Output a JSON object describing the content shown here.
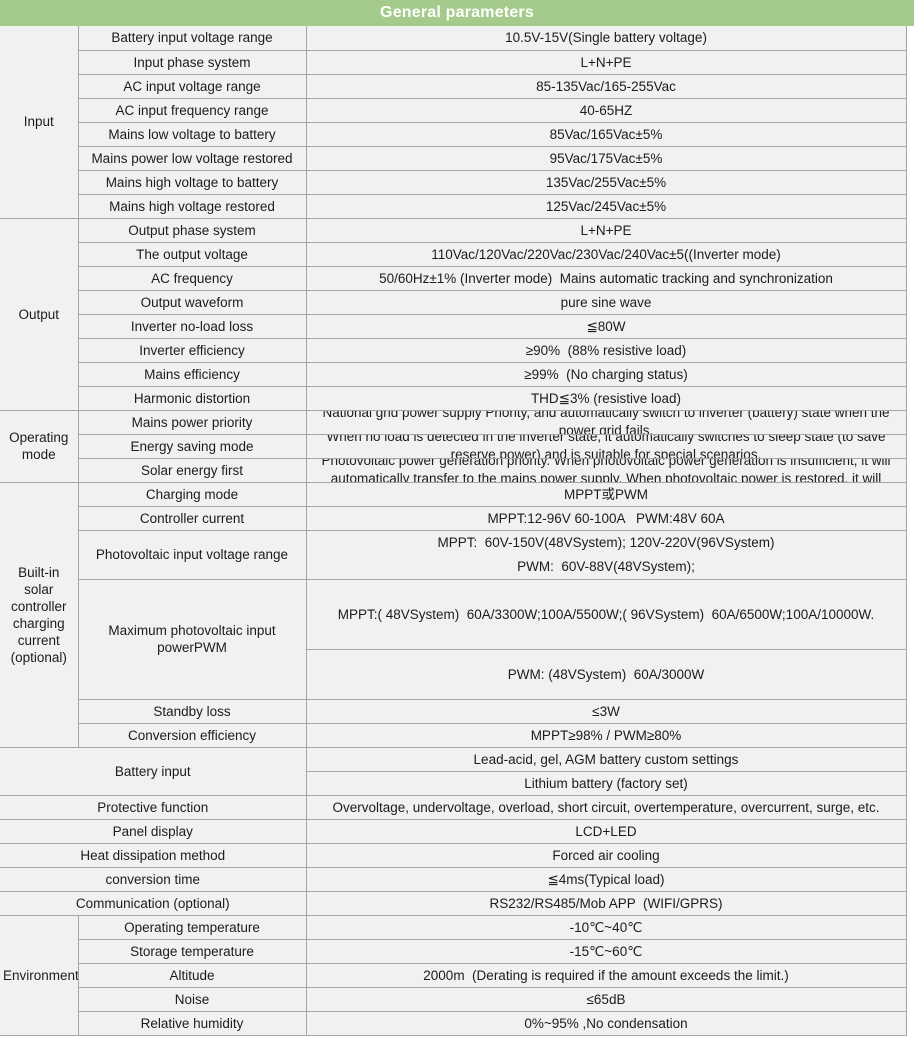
{
  "title": "General parameters",
  "colors": {
    "header_bg": "#a5cb8c",
    "header_text": "#ffffff",
    "cell_bg": "#f1f1f1",
    "border": "#a6a6a6"
  },
  "input": {
    "label": "Input",
    "rows": [
      {
        "param": "Battery input voltage range",
        "value": "10.5V-15V(Single battery voltage)"
      },
      {
        "param": "Input phase system",
        "value": "L+N+PE"
      },
      {
        "param": "AC input voltage range",
        "value": "85-135Vac/165-255Vac"
      },
      {
        "param": "AC input frequency range",
        "value": "40-65HZ"
      },
      {
        "param": "Mains low voltage to battery",
        "value": "85Vac/165Vac±5%"
      },
      {
        "param": "Mains power low voltage restored",
        "value": "95Vac/175Vac±5%"
      },
      {
        "param": "Mains high voltage to battery",
        "value": "135Vac/255Vac±5%"
      },
      {
        "param": "Mains high voltage restored",
        "value": "125Vac/245Vac±5%"
      }
    ]
  },
  "output": {
    "label": "Output",
    "rows": [
      {
        "param": "Output phase system",
        "value": "L+N+PE"
      },
      {
        "param": "The output voltage",
        "value": "110Vac/120Vac/220Vac/230Vac/240Vac±5((Inverter mode)"
      },
      {
        "param": "AC frequency",
        "value": "50/60Hz±1% (Inverter mode)  Mains automatic tracking and synchronization"
      },
      {
        "param": "Output waveform",
        "value": "pure sine wave"
      },
      {
        "param": "Inverter no-load loss",
        "value": "≦80W"
      },
      {
        "param": "Inverter efficiency",
        "value": "≥90%  (88% resistive load)"
      },
      {
        "param": "Mains efficiency",
        "value": "≥99%  (No charging status)"
      },
      {
        "param": "Harmonic distortion",
        "value": "THD≦3% (resistive load)"
      }
    ]
  },
  "operating": {
    "label": "Operating mode",
    "rows": [
      {
        "param": "Mains power priority",
        "value": "National grid power supply Priority, and automatically switch to inverter (battery) state when the power grid fails."
      },
      {
        "param": "Energy saving mode",
        "value": "When no load is detected in the inverter state, it automatically switches to sleep state (to save reserve power) and is suitable for special scenarios."
      },
      {
        "param": "Solar energy first",
        "value": "Photovoltaic power generation priority. When photovoltaic power generation is insufficient, it will automatically transfer to the mains power supply. When photovoltaic power is restored, it will"
      }
    ]
  },
  "solar": {
    "label": "Built-in solar controller charging current (optional)",
    "charging_mode": {
      "param": "Charging mode",
      "value": "MPPT或PWM"
    },
    "controller_current": {
      "param": "Controller current",
      "value": "MPPT:12-96V 60-100A   PWM:48V 60A"
    },
    "pv_voltage": {
      "param": "Photovoltaic input voltage range",
      "line1": "MPPT:  60V-150V(48VSystem); 120V-220V(96VSystem)",
      "line2": "PWM:  60V-88V(48VSystem);"
    },
    "max_pv": {
      "param": "Maximum photovoltaic input powerPWM",
      "mppt": "MPPT:( 48VSystem)  60A/3300W;100A/5500W;( 96VSystem)  60A/6500W;100A/10000W.",
      "pwm": "PWM: (48VSystem)  60A/3000W"
    },
    "standby": {
      "param": "Standby loss",
      "value": "≤3W"
    },
    "conversion": {
      "param": "Conversion efficiency",
      "value": "MPPT≥98% / PWM≥80%"
    }
  },
  "battery": {
    "label": "Battery input",
    "values": [
      "Lead-acid, gel, AGM battery custom settings",
      "Lithium battery (factory set)"
    ]
  },
  "misc": {
    "rows": [
      {
        "param": "Protective function",
        "value": "Overvoltage, undervoltage, overload, short circuit, overtemperature, overcurrent, surge, etc."
      },
      {
        "param": "Panel display",
        "value": "LCD+LED"
      },
      {
        "param": "Heat dissipation method",
        "value": "Forced air cooling"
      },
      {
        "param": "conversion time",
        "value": "≦4ms(Typical load)"
      },
      {
        "param": "Communication (optional)",
        "value": "RS232/RS485/Mob APP  (WIFI/GPRS)"
      }
    ]
  },
  "environment": {
    "label": "Environment",
    "rows": [
      {
        "param": "Operating temperature",
        "value": "-10℃~40℃"
      },
      {
        "param": "Storage temperature",
        "value": "-15℃~60℃"
      },
      {
        "param": "Altitude",
        "value": "2000m  (Derating is required if the amount exceeds the limit.)"
      },
      {
        "param": "Noise",
        "value": "≤65dB"
      },
      {
        "param": "Relative humidity",
        "value": "0%~95% ,No condensation"
      }
    ]
  }
}
